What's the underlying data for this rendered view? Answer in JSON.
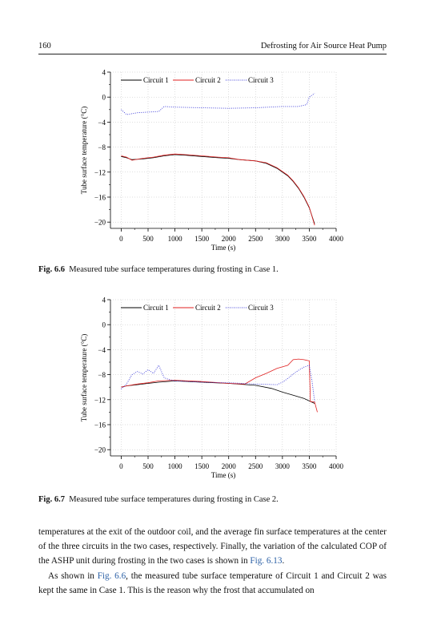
{
  "header": {
    "page_number": "160",
    "book_title": "Defrosting for Air Source Heat Pump"
  },
  "figures": [
    {
      "label": "Fig. 6.6",
      "caption": "Measured tube surface temperatures during frosting in Case 1."
    },
    {
      "label": "Fig. 6.7",
      "caption": "Measured tube surface temperatures during frosting in Case 2."
    }
  ],
  "chart_data": [
    {
      "type": "line",
      "xlabel": "Time (s)",
      "ylabel": "Tube surface temperature (°C)",
      "xlim": [
        -200,
        4000
      ],
      "ylim": [
        -21,
        4
      ],
      "xticks": [
        0,
        500,
        1000,
        1500,
        2000,
        2500,
        3000,
        3500,
        4000
      ],
      "yticks": [
        4,
        0,
        -4,
        -8,
        -12,
        -16,
        -20
      ],
      "grid": true,
      "legend_position": "top",
      "series": [
        {
          "name": "Circuit 1",
          "color": "#000000",
          "style": "solid",
          "x": [
            0,
            100,
            200,
            400,
            600,
            800,
            1000,
            1200,
            1500,
            1800,
            2000,
            2200,
            2500,
            2700,
            2900,
            3100,
            3200,
            3300,
            3400,
            3500,
            3600
          ],
          "y": [
            -9.5,
            -9.7,
            -10.0,
            -9.9,
            -9.7,
            -9.4,
            -9.2,
            -9.3,
            -9.5,
            -9.7,
            -9.8,
            -10.0,
            -10.2,
            -10.6,
            -11.4,
            -12.6,
            -13.5,
            -14.6,
            -16.0,
            -17.7,
            -20.3
          ]
        },
        {
          "name": "Circuit 2",
          "color": "#e02020",
          "style": "solid",
          "x": [
            0,
            100,
            200,
            400,
            600,
            800,
            1000,
            1200,
            1500,
            1800,
            2000,
            2200,
            2500,
            2700,
            2900,
            3100,
            3200,
            3300,
            3400,
            3500,
            3600
          ],
          "y": [
            -9.4,
            -9.6,
            -10.1,
            -9.8,
            -9.6,
            -9.3,
            -9.1,
            -9.2,
            -9.4,
            -9.6,
            -9.7,
            -10.0,
            -10.2,
            -10.5,
            -11.3,
            -12.5,
            -13.4,
            -14.5,
            -15.9,
            -17.6,
            -20.5
          ]
        },
        {
          "name": "Circuit 3",
          "color": "#3a3ad8",
          "style": "dotted",
          "x": [
            0,
            100,
            300,
            500,
            700,
            800,
            1000,
            1500,
            2000,
            2500,
            3000,
            3300,
            3450,
            3500,
            3600
          ],
          "y": [
            -2.0,
            -2.8,
            -2.5,
            -2.4,
            -2.3,
            -1.5,
            -1.6,
            -1.7,
            -1.8,
            -1.7,
            -1.5,
            -1.5,
            -1.2,
            0.0,
            0.6
          ]
        }
      ]
    },
    {
      "type": "line",
      "xlabel": "Time (s)",
      "ylabel": "Tube surface temperature (°C)",
      "xlim": [
        -200,
        4000
      ],
      "ylim": [
        -21,
        4
      ],
      "xticks": [
        0,
        500,
        1000,
        1500,
        2000,
        2500,
        3000,
        3500,
        4000
      ],
      "yticks": [
        4,
        0,
        -4,
        -8,
        -12,
        -16,
        -20
      ],
      "grid": true,
      "legend_position": "top",
      "series": [
        {
          "name": "Circuit 1",
          "color": "#000000",
          "style": "solid",
          "x": [
            0,
            100,
            300,
            500,
            700,
            1000,
            1500,
            2000,
            2500,
            2800,
            3000,
            3200,
            3400,
            3500,
            3600
          ],
          "y": [
            -10.0,
            -9.8,
            -9.6,
            -9.4,
            -9.2,
            -9.0,
            -9.2,
            -9.4,
            -9.7,
            -10.2,
            -10.8,
            -11.3,
            -11.8,
            -12.2,
            -12.6
          ]
        },
        {
          "name": "Circuit 2",
          "color": "#e02020",
          "style": "solid",
          "x": [
            0,
            100,
            300,
            500,
            700,
            1000,
            1500,
            2000,
            2300,
            2500,
            2700,
            2900,
            3100,
            3200,
            3300,
            3400,
            3500,
            3520,
            3600,
            3650
          ],
          "y": [
            -10.0,
            -9.8,
            -9.5,
            -9.3,
            -9.0,
            -8.9,
            -9.1,
            -9.4,
            -9.5,
            -8.5,
            -7.8,
            -7.0,
            -6.5,
            -5.6,
            -5.5,
            -5.6,
            -5.8,
            -12.3,
            -12.4,
            -14.0
          ]
        },
        {
          "name": "Circuit 3",
          "color": "#3a3ad8",
          "style": "dotted",
          "x": [
            0,
            100,
            200,
            300,
            400,
            500,
            600,
            700,
            800,
            900,
            1000,
            1500,
            2000,
            2500,
            2900,
            3000,
            3100,
            3200,
            3300,
            3400,
            3500,
            3550,
            3600
          ],
          "y": [
            -10.3,
            -9.5,
            -8.0,
            -7.5,
            -7.9,
            -7.2,
            -7.8,
            -6.5,
            -8.5,
            -8.8,
            -9.0,
            -9.2,
            -9.3,
            -9.5,
            -9.6,
            -9.2,
            -8.6,
            -7.9,
            -7.3,
            -6.8,
            -6.5,
            -9.0,
            -12.3
          ]
        }
      ]
    }
  ],
  "body": {
    "paragraph1": "temperatures at the exit of the outdoor coil, and the average fin surface temperatures at the center of the three circuits in the two cases, respectively. Finally, the variation of the calculated COP of the ASHP unit during frosting in the two cases is shown in ",
    "paragraph1_ref": "Fig. 6.13",
    "paragraph1_end": ".",
    "paragraph2_start": "As shown in ",
    "paragraph2_ref": "Fig. 6.6",
    "paragraph2_rest": ", the measured tube surface temperature of Circuit 1 and Circuit 2 was kept the same in Case 1. This is the reason why the frost that accumulated on"
  }
}
